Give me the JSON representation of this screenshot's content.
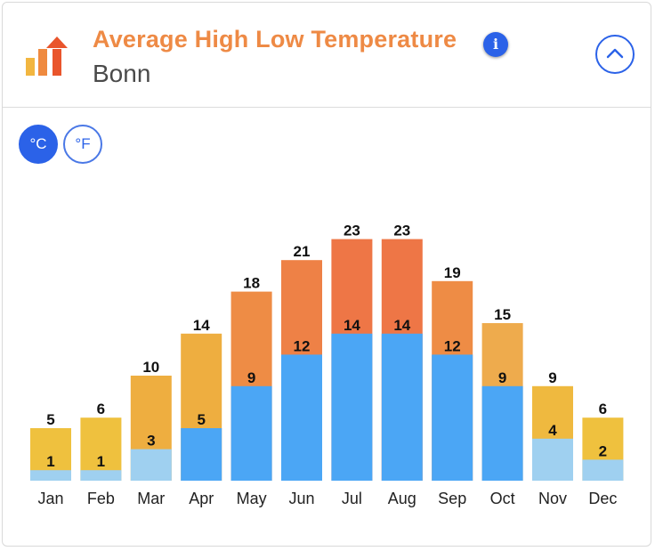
{
  "header": {
    "title": "Average High Low Temperature",
    "location": "Bonn",
    "info_icon": "info-icon",
    "collapse_icon": "chevron-up-icon"
  },
  "units": {
    "celsius_label": "°C",
    "fahrenheit_label": "°F",
    "selected": "celsius"
  },
  "colors": {
    "title": "#ee8a45",
    "accent": "#2b62e8",
    "low_warm": "#4ba6f5",
    "low_cold": "#9fd0f0"
  },
  "chart_data": {
    "type": "bar",
    "title": "Average High Low Temperature",
    "categories": [
      "Jan",
      "Feb",
      "Mar",
      "Apr",
      "May",
      "Jun",
      "Jul",
      "Aug",
      "Sep",
      "Oct",
      "Nov",
      "Dec"
    ],
    "series": [
      {
        "name": "High",
        "values": [
          5,
          6,
          10,
          14,
          18,
          21,
          23,
          23,
          19,
          15,
          9,
          6
        ],
        "colors": [
          "#efc13e",
          "#efc13e",
          "#eeae40",
          "#eeae40",
          "#ee8c45",
          "#ee8146",
          "#ee7646",
          "#ee7646",
          "#ee8c45",
          "#eeab4d",
          "#efb93f",
          "#efc13e"
        ]
      },
      {
        "name": "Low",
        "values": [
          1,
          1,
          3,
          5,
          9,
          12,
          14,
          14,
          12,
          9,
          4,
          2
        ],
        "colors": [
          "#9fd0f0",
          "#9fd0f0",
          "#9fd0f0",
          "#4ba6f5",
          "#4ba6f5",
          "#4ba6f5",
          "#4ba6f5",
          "#4ba6f5",
          "#4ba6f5",
          "#4ba6f5",
          "#9fd0f0",
          "#9fd0f0"
        ]
      }
    ],
    "unit": "°C",
    "ylim": [
      0,
      23
    ],
    "grid": false,
    "legend": "none"
  }
}
